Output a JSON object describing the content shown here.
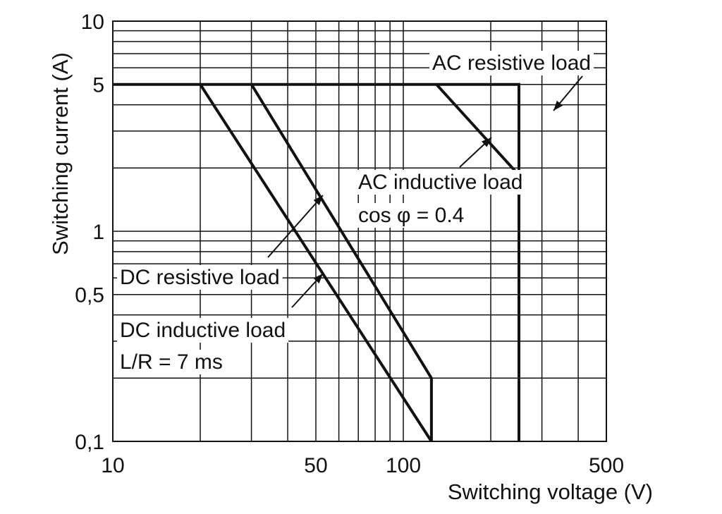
{
  "chart_data": {
    "type": "line",
    "xscale": "log",
    "yscale": "log",
    "xlim": [
      10,
      500
    ],
    "ylim": [
      0.1,
      10
    ],
    "grid": true,
    "xlabel": "Switching voltage (V)",
    "ylabel": "Switching current (A)",
    "x_ticks": [
      10,
      50,
      100,
      500
    ],
    "x_tick_labels": [
      "10",
      "50",
      "100",
      "500"
    ],
    "y_ticks": [
      0.1,
      0.5,
      1,
      5,
      10
    ],
    "y_tick_labels": [
      "0,1",
      "0,5",
      "1",
      "5",
      "10"
    ],
    "series": [
      {
        "x": [
          10,
          250,
          250
        ],
        "y": [
          5,
          5,
          0.1
        ]
      },
      {
        "x": [
          130,
          250
        ],
        "y": [
          5,
          1.85
        ]
      },
      {
        "x": [
          30,
          125,
          125
        ],
        "y": [
          5,
          0.2,
          0.1
        ]
      },
      {
        "x": [
          20,
          125
        ],
        "y": [
          5,
          0.1
        ]
      }
    ],
    "annotations": [
      {
        "text": "AC resistive load",
        "x": 250,
        "y": 3.5
      },
      {
        "text": "AC inductive load",
        "x": 175,
        "y": 2.7
      },
      {
        "text": "cos φ = 0.4",
        "x": 175,
        "y": 2.7
      },
      {
        "text": "DC resistive load",
        "x": 49,
        "y": 1.6
      },
      {
        "text": "DC inductive load",
        "x": 49,
        "y": 0.65
      },
      {
        "text": "L/R = 7 ms",
        "x": 49,
        "y": 0.65
      }
    ]
  }
}
